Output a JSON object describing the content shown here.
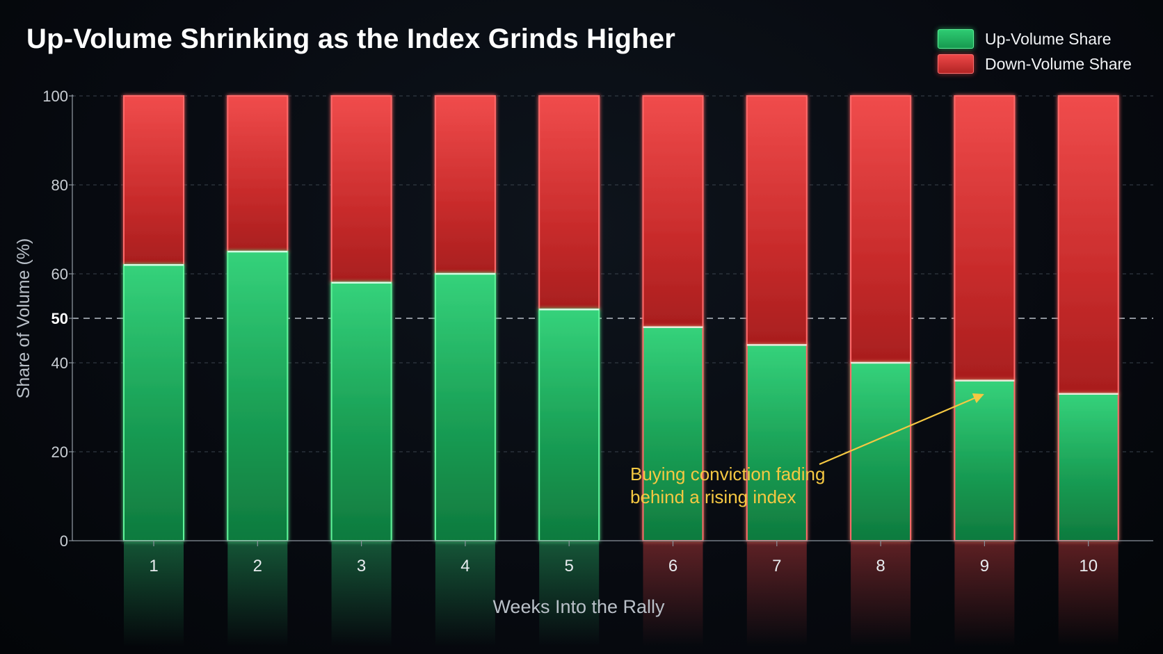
{
  "chart_data": {
    "type": "bar",
    "stacked": true,
    "title": "Up-Volume Shrinking as the Index Grinds Higher",
    "xlabel": "Weeks Into the Rally",
    "ylabel": "Share of Volume (%)",
    "ylim": [
      0,
      100
    ],
    "yticks": [
      0,
      20,
      40,
      50,
      60,
      80,
      100
    ],
    "reference_line": 50,
    "grid": true,
    "legend_position": "top-right",
    "categories": [
      "1",
      "2",
      "3",
      "4",
      "5",
      "6",
      "7",
      "8",
      "9",
      "10"
    ],
    "series": [
      {
        "name": "Up-Volume Share",
        "color": "#1fb860",
        "values": [
          62,
          65,
          58,
          60,
          52,
          48,
          44,
          40,
          36,
          33
        ]
      },
      {
        "name": "Down-Volume Share",
        "color": "#e03636",
        "values": [
          38,
          35,
          42,
          40,
          48,
          52,
          56,
          60,
          64,
          67
        ]
      }
    ],
    "annotation": {
      "text_lines": [
        "Buying conviction fading",
        "behind a rising index"
      ],
      "color": "#f5c842",
      "points_to_category": "9"
    }
  }
}
